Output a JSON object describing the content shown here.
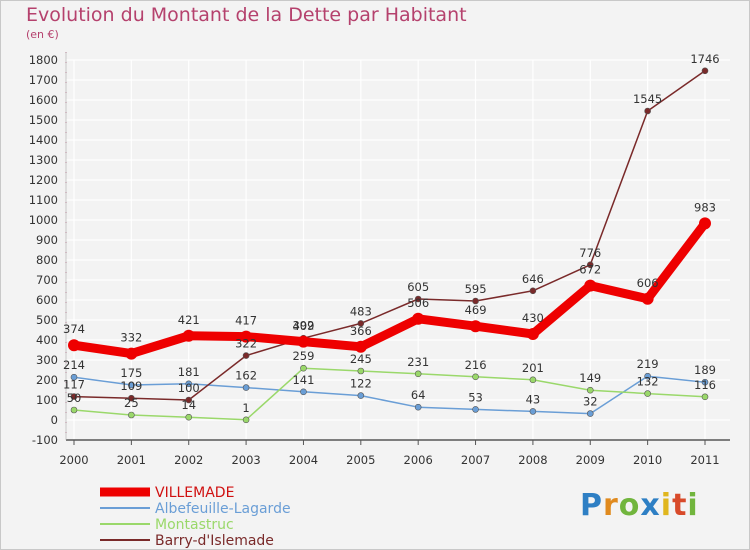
{
  "title": "Evolution du Montant de la Dette par Habitant",
  "unit": "(en €)",
  "logo": "Proxiti",
  "colors": {
    "title": "#b5416d",
    "grid": "#ffffff",
    "background": "#f3f3f3"
  },
  "chart_data": {
    "type": "line",
    "title": "Evolution du Montant de la Dette par Habitant",
    "xlabel": "",
    "ylabel": "(en €)",
    "ylim": [
      -100,
      1800
    ],
    "yticks": [
      -100,
      0,
      100,
      200,
      300,
      400,
      500,
      600,
      700,
      800,
      900,
      1000,
      1100,
      1200,
      1300,
      1400,
      1500,
      1600,
      1700,
      1800
    ],
    "grid": true,
    "legend": "bottom-left",
    "x": [
      "2000",
      "2001",
      "2002",
      "2003",
      "2004",
      "2005",
      "2006",
      "2007",
      "2008",
      "2009",
      "2010",
      "2011"
    ],
    "series": [
      {
        "name": "VILLEMADE",
        "color": "#ee0000",
        "width": 9,
        "radius": 6,
        "values": [
          374,
          332,
          421,
          417,
          392,
          366,
          506,
          469,
          430,
          672,
          606,
          983
        ]
      },
      {
        "name": "Albefeuille-Lagarde",
        "color": "#6a9ed6",
        "width": 1.5,
        "radius": 3,
        "values": [
          214,
          175,
          181,
          162,
          141,
          122,
          64,
          53,
          43,
          32,
          219,
          189
        ]
      },
      {
        "name": "Montastruc",
        "color": "#9ad86a",
        "width": 1.5,
        "radius": 3,
        "values": [
          50,
          25,
          14,
          1,
          259,
          245,
          231,
          216,
          201,
          149,
          132,
          116
        ]
      },
      {
        "name": "Barry-d'Islemade",
        "color": "#7a2a2a",
        "width": 1.5,
        "radius": 3,
        "values": [
          117,
          109,
          100,
          322,
          409,
          483,
          605,
          595,
          646,
          776,
          1545,
          1746
        ]
      }
    ]
  }
}
